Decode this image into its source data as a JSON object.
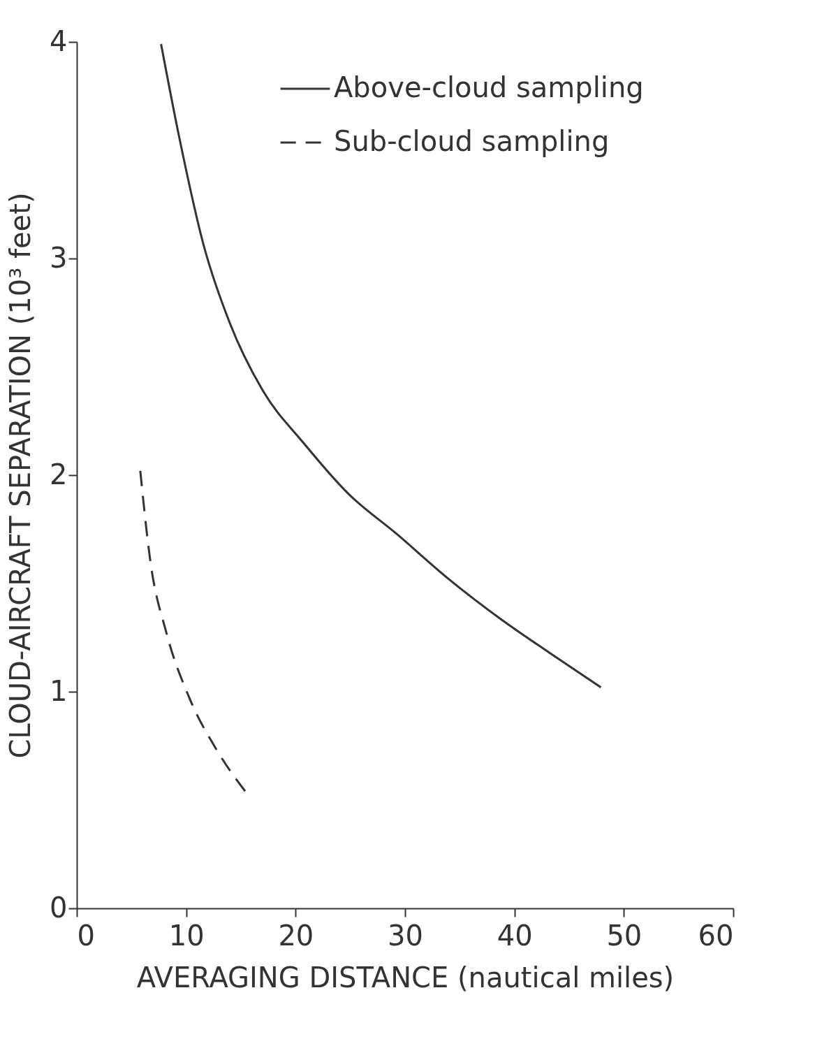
{
  "chart_data": {
    "type": "line",
    "xlabel": "AVERAGING DISTANCE (nautical miles)",
    "ylabel": "CLOUD-AIRCRAFT SEPARATION (10³ feet)",
    "xlim": [
      0,
      60
    ],
    "xticks": [
      0,
      10,
      20,
      30,
      40,
      50,
      60
    ],
    "ylim": [
      0,
      4
    ],
    "yticks": [
      0,
      1,
      2,
      3,
      4
    ],
    "grid": false,
    "legend": "top right",
    "marker": "none",
    "series": [
      {
        "name": "Above-cloud sampling",
        "color": "#333333",
        "line_style": "solid",
        "x": [
          7.7,
          9.4,
          11.6,
          14.0,
          17.0,
          20.7,
          24.9,
          29.2,
          34.0,
          38.9,
          43.2,
          47.9
        ],
        "values": [
          3.99,
          3.55,
          3.06,
          2.7,
          2.39,
          2.15,
          1.91,
          1.73,
          1.52,
          1.33,
          1.18,
          1.02
        ]
      },
      {
        "name": "Sub-cloud sampling",
        "color": "#333333",
        "line_style": "dashed",
        "x": [
          5.8,
          6.7,
          8.2,
          10.3,
          12.8,
          15.7
        ],
        "values": [
          2.02,
          1.61,
          1.27,
          0.97,
          0.73,
          0.52
        ]
      }
    ]
  }
}
